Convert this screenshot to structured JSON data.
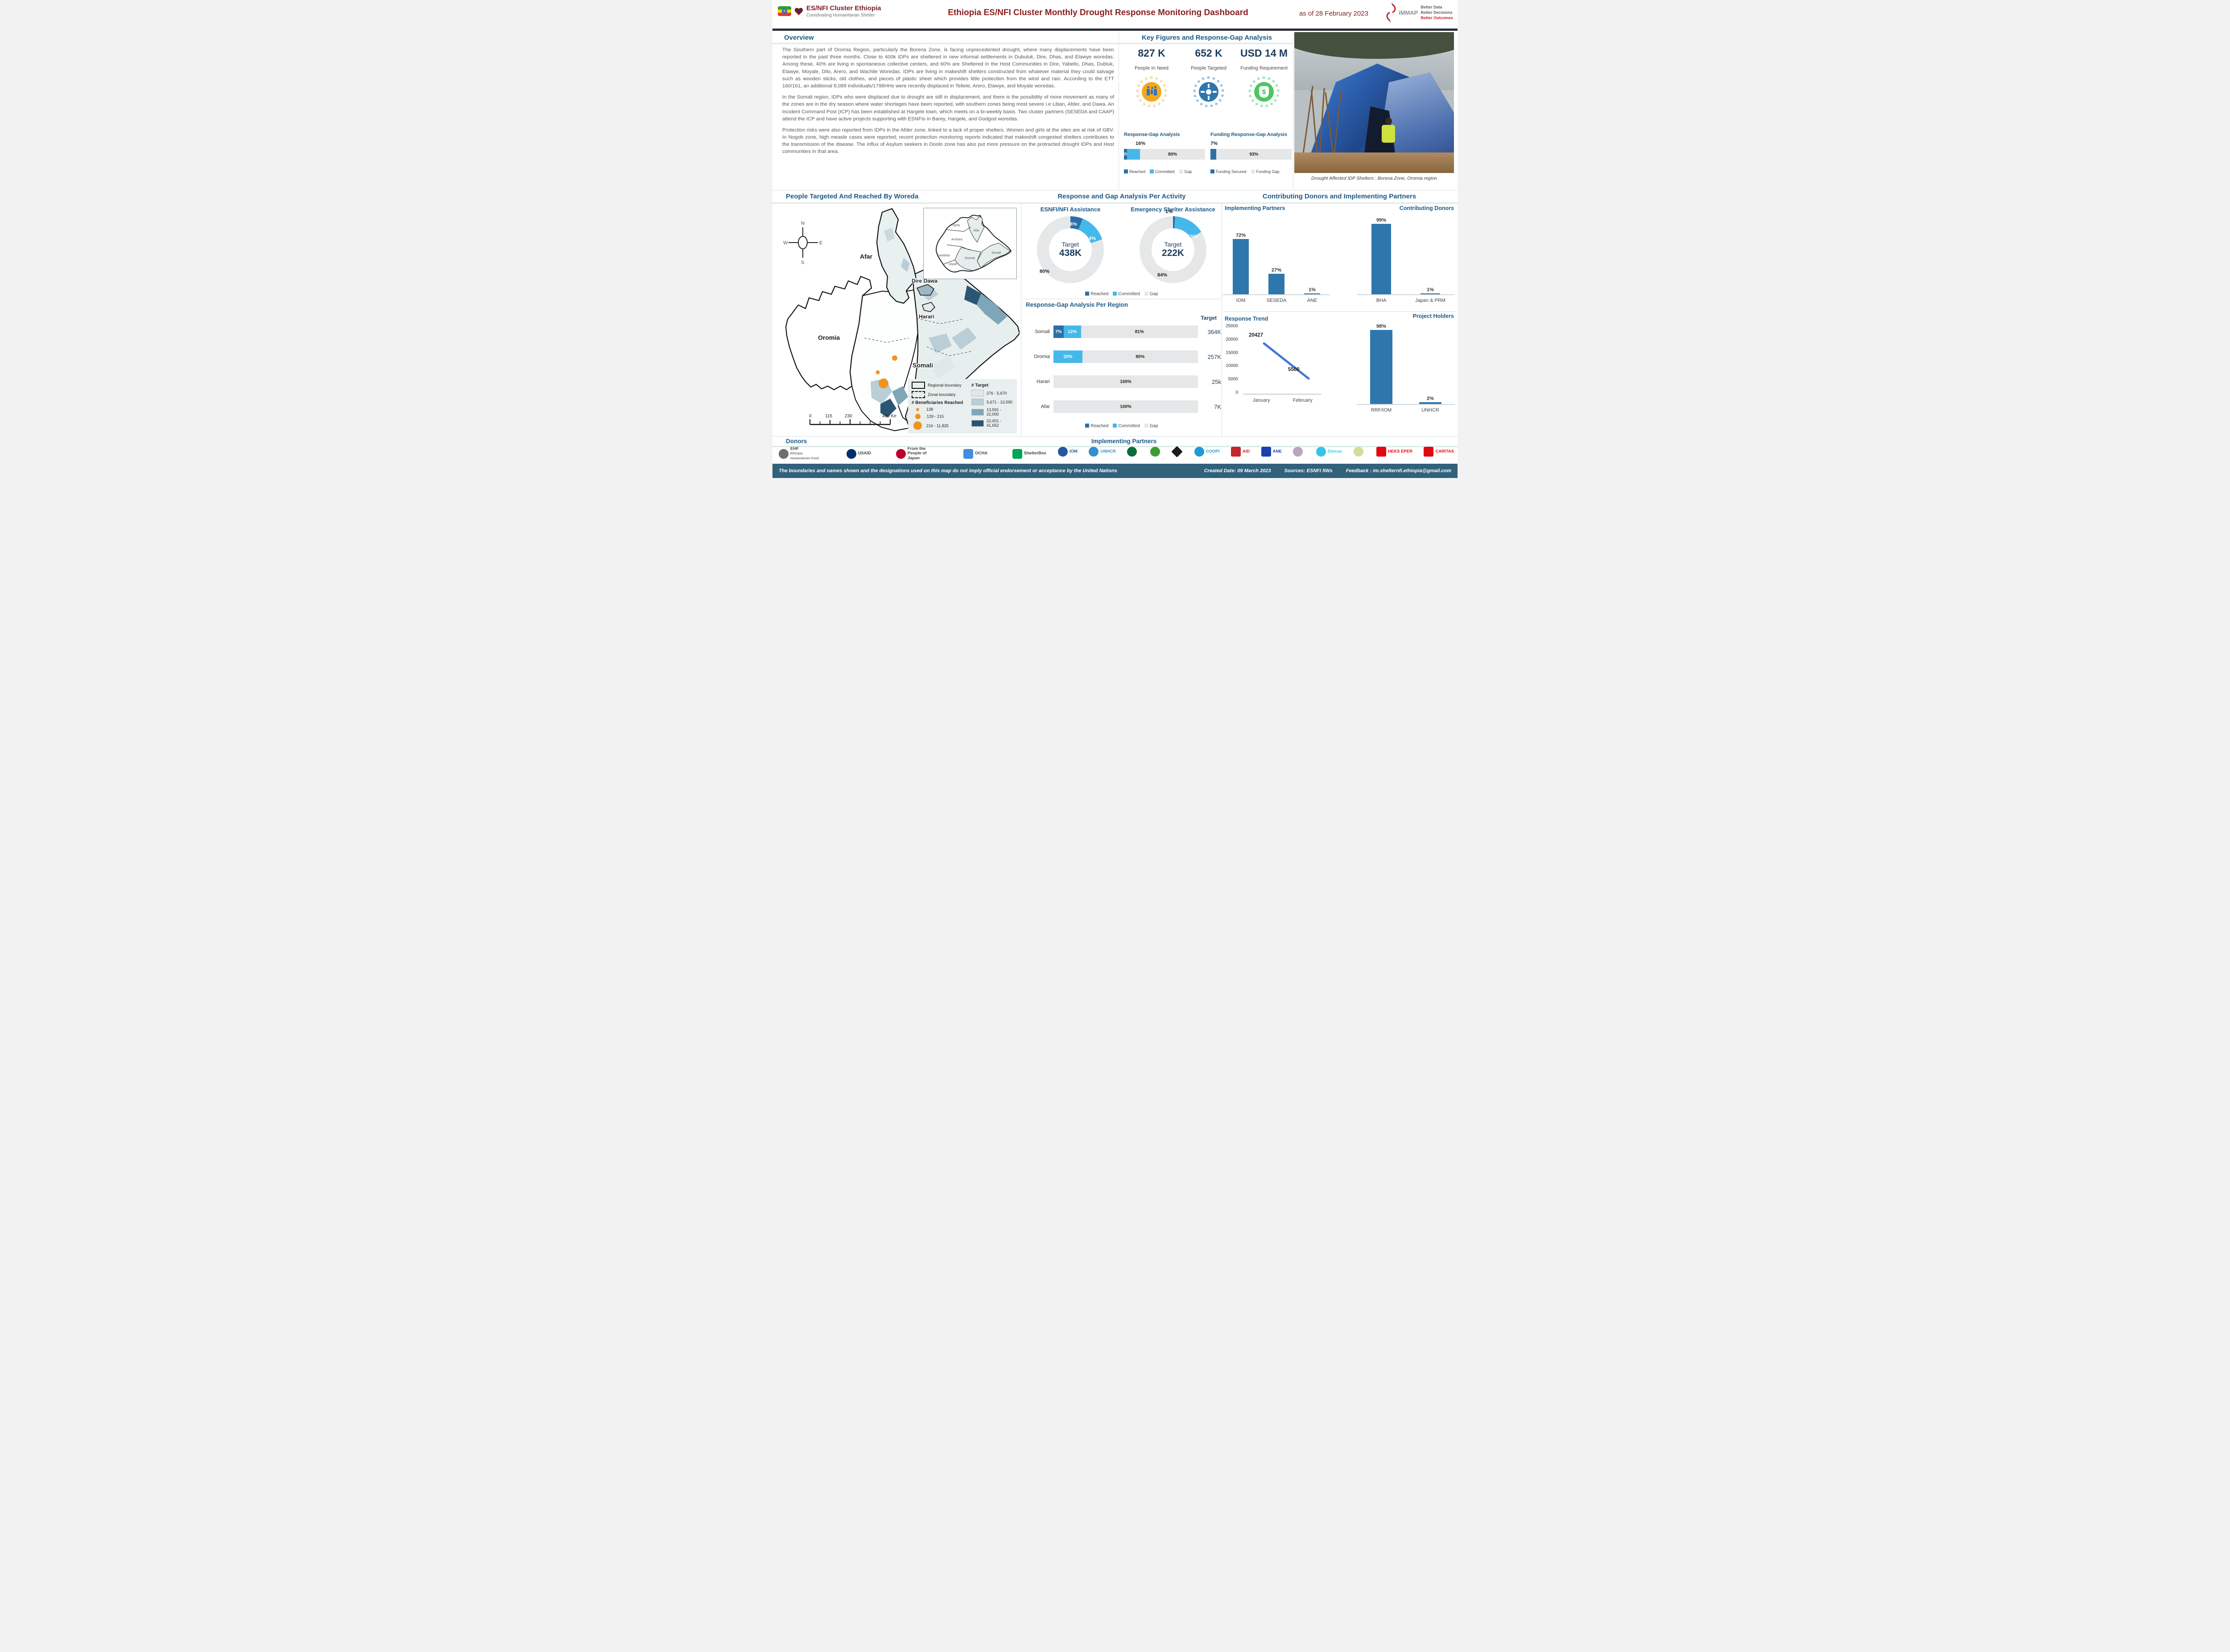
{
  "header": {
    "org_name": "ES/NFI Cluster Ethiopia",
    "org_tagline": "Coordinating Humanitarian Shelter",
    "title": "Ethiopia  ES/NFI Cluster Monthly Drought Response Monitoring Dashboard",
    "as_of": "as of 28 February 2023",
    "immap": {
      "name": "iMMAP",
      "lines": [
        "Better Data",
        "Better Decisions",
        "Better Outcomes"
      ]
    }
  },
  "overview": {
    "title": "Overview",
    "paragraphs": [
      "The Southern part of Oromia Region, particularly the Borena Zone, is facing unprecedented drought, where many displacements have been reported in the past three months. Close to 400k IDPs are sheltered in new informal settlements in  Dubuluk, Dire, Dhas, and Elawye woredas. Among these, 40% are living in spontaneous collective centers, and 60% are Sheltered in the  Host Communities in Dire, Yabello, Dhas, Dubluk, Elawye, Moyale, Dilo, Arero, and Wachile Woredas. IDPs are living in makeshift shelters constructed from whatever material they could salvage such as wooden sticks, old clothes, and pieces of plastic sheet which provides little protection from the wind and rain. According to the ETT 160/161, an additional 8,089 individuals/1798HHs were recently displaced in  Teltele, Arero, Elawye, and Moyale woredas.",
      "In the Somali region, IDPs who were displaced due to drought are still in displacement, and there is the possibility of more movement as many of the zones are in the dry season where water shortages have been reported, with southern zones being most severe i.e Liban, Afder, and Dawa. An Incident Command Post (ICP) has been established at Hargele town, which meets on a bi-weekly basis.  Two cluster partners (SESEDA and CAAP) attend the ICP and have active projects supporting with ESNFIs in Barey, Hargele, and Godgod woredas.",
      "Protection risks were also reported from IDPs in the Afder zone, linked to a lack of proper shelters. Women and girls at the sites are at risk of GBV. In Nogob zone, high measle cases were reported; recent protection monitoring reports indicated that makeshift congested shelters contributes to the  transmission of the disease.  The influx of Asylum seekers in Doolo zone has also  put more pressure on the protracted drought IDPs and Host communities in that area."
    ]
  },
  "key_figures": {
    "title": "Key Figures and Response-Gap Analysis",
    "figures": [
      {
        "value": "827 K",
        "label": "People In Need",
        "icon": "family-icon"
      },
      {
        "value": "652 K",
        "label": "People Targeted",
        "icon": "people-targeted-icon"
      },
      {
        "value": "USD 14 M",
        "label": "Funding Requirement",
        "icon": "money-bag-icon"
      }
    ],
    "response_gap": {
      "title": "Response-Gap Analysis",
      "callout": "16%",
      "reached": 4,
      "committed": 16,
      "gap": 80,
      "reached_label": "4%",
      "gap_label": "80%",
      "legend": [
        "Reached",
        "Committed",
        "Gap"
      ]
    },
    "funding_gap": {
      "title": "Funding Response-Gap Analysis",
      "callout": "7%",
      "secured": 7,
      "gap": 93,
      "gap_label": "93%",
      "legend": [
        "Funding Secured",
        "Funding Gap"
      ]
    },
    "photo_caption": "Drought Affected IDP Shelters : Borena Zone, Oromia region"
  },
  "map_section": {
    "title": "People Targeted And Reached By Woreda",
    "region_labels": [
      "Afar",
      "Dire Dawa",
      "Harari",
      "Oromia",
      "Somali"
    ],
    "inset_labels": [
      "Tigray",
      "Afar",
      "Amhara",
      "Oromia",
      "Somali",
      "SNNP",
      "Gambela"
    ],
    "compass": {
      "n": "N",
      "e": "E",
      "s": "S",
      "w": "W"
    },
    "legend": {
      "regional_boundary": "Regional boundary",
      "zonal_boundary": "Zonal boundary",
      "beneficiaries_title": "# Beneficiaries Reached",
      "beneficiaries_classes": [
        "138",
        "139 - 215",
        "216 - 11,825"
      ],
      "target_title": "# Target",
      "target_classes": [
        "276 - 5,670",
        "5,671 - 13,590",
        "13,591 - 22,000",
        "22,001 - 41,652"
      ]
    },
    "scale": {
      "t0": "0",
      "t1": "115",
      "t2": "230",
      "t3": "460 Km"
    }
  },
  "activity_section": {
    "title": "Response and Gap Analysis Per Activity",
    "donuts": [
      {
        "title": "ESNFI/NFI Assistance",
        "center_label": "Target",
        "center_value": "438K",
        "reached": 6,
        "committed": 14,
        "gap": 80,
        "reached_label": "6%",
        "committed_label": "14%",
        "gap_label": "80%"
      },
      {
        "title": "Emergency Shelter Assistance",
        "center_label": "Target",
        "center_value": "222K",
        "reached": 1,
        "committed": 15,
        "gap": 84,
        "reached_label": "1%",
        "committed_label": "15%",
        "gap_label": "84%"
      }
    ],
    "legend": [
      "Reached",
      "Committed",
      "Gap"
    ]
  },
  "region_section": {
    "title": "Response-Gap Analysis Per Region",
    "target_header": "Target",
    "rows": [
      {
        "region": "Somali",
        "reached": 7,
        "committed": 12,
        "gap": 81,
        "reached_label": "7%",
        "committed_label": "12%",
        "gap_label": "81%",
        "target": "364K"
      },
      {
        "region": "Oromia",
        "reached": 0,
        "committed": 20,
        "gap": 80,
        "reached_label": "",
        "committed_label": "20%",
        "gap_label": "80%",
        "target": "257K"
      },
      {
        "region": "Harari",
        "reached": 0,
        "committed": 0,
        "gap": 100,
        "reached_label": "",
        "committed_label": "",
        "gap_label": "100%",
        "target": "25k"
      },
      {
        "region": "Afar",
        "reached": 0,
        "committed": 0,
        "gap": 100,
        "reached_label": "",
        "committed_label": "",
        "gap_label": "100%",
        "target": "7K"
      }
    ],
    "legend": [
      "Reached",
      "Committed",
      "Gap"
    ]
  },
  "partners_section": {
    "title": "Contributing Donors and Implementing Partners",
    "ip": {
      "title": "Implementing Partners",
      "bars": [
        {
          "label": "IOM",
          "value": 72,
          "value_label": "72%"
        },
        {
          "label": "SESEDA",
          "value": 27,
          "value_label": "27%"
        },
        {
          "label": "ANE",
          "value": 1,
          "value_label": "1%"
        }
      ]
    },
    "cd": {
      "title": "Contributing Donors",
      "bars": [
        {
          "label": "BHA",
          "value": 99,
          "value_label": "99%"
        },
        {
          "label": "Japan & PRM",
          "value": 1,
          "value_label": "1%"
        }
      ]
    },
    "trend": {
      "title": "Response Trend",
      "yticks": [
        "25000",
        "20000",
        "15000",
        "10000",
        "5000",
        "0"
      ],
      "points": [
        {
          "x_label": "January",
          "value": 20427,
          "value_label": "20427"
        },
        {
          "x_label": "February",
          "value": 5500,
          "value_label": "5500"
        }
      ],
      "ymax": 25000
    },
    "ph": {
      "title": "Project Holders",
      "bars": [
        {
          "label": "RRF/IOM",
          "value": 98,
          "value_label": "98%"
        },
        {
          "label": "UNHCR",
          "value": 2,
          "value_label": "2%"
        }
      ]
    }
  },
  "footer": {
    "donors_title": "Donors",
    "partners_title": "Implementing Partners",
    "donor_logos": [
      {
        "label": "EHF",
        "sub": "Ethiopia Humanitarian Fund",
        "color": "#6d6e71"
      },
      {
        "label": "USAID",
        "sub": "",
        "color": "#002f6c"
      },
      {
        "label": "From the People of Japan",
        "sub": "",
        "color": "#bc002d"
      },
      {
        "label": "OCHA",
        "sub": "",
        "color": "#418fde"
      },
      {
        "label": "ShelterBox",
        "sub": "",
        "color": "#00a651"
      }
    ],
    "partner_logos": [
      {
        "label": "IOM",
        "color": "#2456a4"
      },
      {
        "label": "UNHCR",
        "color": "#338fce"
      },
      {
        "label": "",
        "color": "#0b6b3a"
      },
      {
        "label": "",
        "color": "#3f9c35"
      },
      {
        "label": "",
        "color": "#1b1b1b"
      },
      {
        "label": "COOPI",
        "color": "#1f9ad6"
      },
      {
        "label": "AID",
        "color": "#c1272d"
      },
      {
        "label": "ANE",
        "color": "#1b3fae"
      },
      {
        "label": "",
        "color": "#b9a6b6"
      },
      {
        "label": "Dorcas",
        "color": "#35c4e8"
      },
      {
        "label": "",
        "color": "#cfe09a"
      },
      {
        "label": "HEKS EPER",
        "color": "#e30613"
      },
      {
        "label": "CARITAS",
        "color": "#e30613"
      }
    ],
    "disclaimer": "The boundaries and names shown and the designations used on this map do not imply official endorsement or acceptance by the United Nations",
    "created": "Created Date: 09 March 2023",
    "sources": "Sources: ESNFI 5Ws",
    "feedback": "Feedback : im.shelternfi.ethiopia@gmail.com"
  },
  "colors": {
    "reached": "#2c6fa6",
    "committed": "#45b8ea",
    "gap": "#e5e7e8",
    "bar": "#2e77ad",
    "accent_red": "#8a1e1e",
    "header_blue": "#1d5a86",
    "number_navy": "#1b3c5f",
    "orange": "#f0941f",
    "green": "#4cc760",
    "trend_line": "#4677d8",
    "bottom_bar": "#31617b",
    "choropleth": [
      "#dfe9ea",
      "#b9ced6",
      "#7fa6b8",
      "#2a5674"
    ]
  },
  "chart_data": [
    {
      "type": "bar",
      "title": "Response-Gap Analysis",
      "categories": [
        "Reached",
        "Committed",
        "Gap"
      ],
      "values": [
        4,
        16,
        80
      ],
      "unit": "%",
      "layout": "horizontal-stacked"
    },
    {
      "type": "bar",
      "title": "Funding Response-Gap Analysis",
      "categories": [
        "Funding Secured",
        "Funding Gap"
      ],
      "values": [
        7,
        93
      ],
      "unit": "%",
      "layout": "horizontal-stacked"
    },
    {
      "type": "pie",
      "title": "ESNFI/NFI Assistance",
      "labels": [
        "Reached",
        "Committed",
        "Gap"
      ],
      "values": [
        6,
        14,
        80
      ],
      "center_text": "Target 438K",
      "donut": true
    },
    {
      "type": "pie",
      "title": "Emergency Shelter Assistance",
      "labels": [
        "Reached",
        "Committed",
        "Gap"
      ],
      "values": [
        1,
        15,
        84
      ],
      "center_text": "Target 222K",
      "donut": true
    },
    {
      "type": "bar",
      "title": "Response-Gap Analysis Per Region",
      "categories": [
        "Somali",
        "Oromia",
        "Harari",
        "Afar"
      ],
      "series": [
        {
          "name": "Reached",
          "values": [
            7,
            0,
            0,
            0
          ]
        },
        {
          "name": "Committed",
          "values": [
            12,
            20,
            0,
            0
          ]
        },
        {
          "name": "Gap",
          "values": [
            81,
            80,
            100,
            100
          ]
        }
      ],
      "targets": [
        "364K",
        "257K",
        "25k",
        "7K"
      ],
      "unit": "%",
      "layout": "horizontal-stacked"
    },
    {
      "type": "bar",
      "title": "Implementing Partners",
      "categories": [
        "IOM",
        "SESEDA",
        "ANE"
      ],
      "values": [
        72,
        27,
        1
      ],
      "unit": "%"
    },
    {
      "type": "bar",
      "title": "Contributing Donors",
      "categories": [
        "BHA",
        "Japan & PRM"
      ],
      "values": [
        99,
        1
      ],
      "unit": "%"
    },
    {
      "type": "line",
      "title": "Response Trend",
      "x": [
        "January",
        "February"
      ],
      "values": [
        20427,
        5500
      ],
      "ylim": [
        0,
        25000
      ]
    },
    {
      "type": "bar",
      "title": "Project Holders",
      "categories": [
        "RRF/IOM",
        "UNHCR"
      ],
      "values": [
        98,
        2
      ],
      "unit": "%"
    }
  ]
}
